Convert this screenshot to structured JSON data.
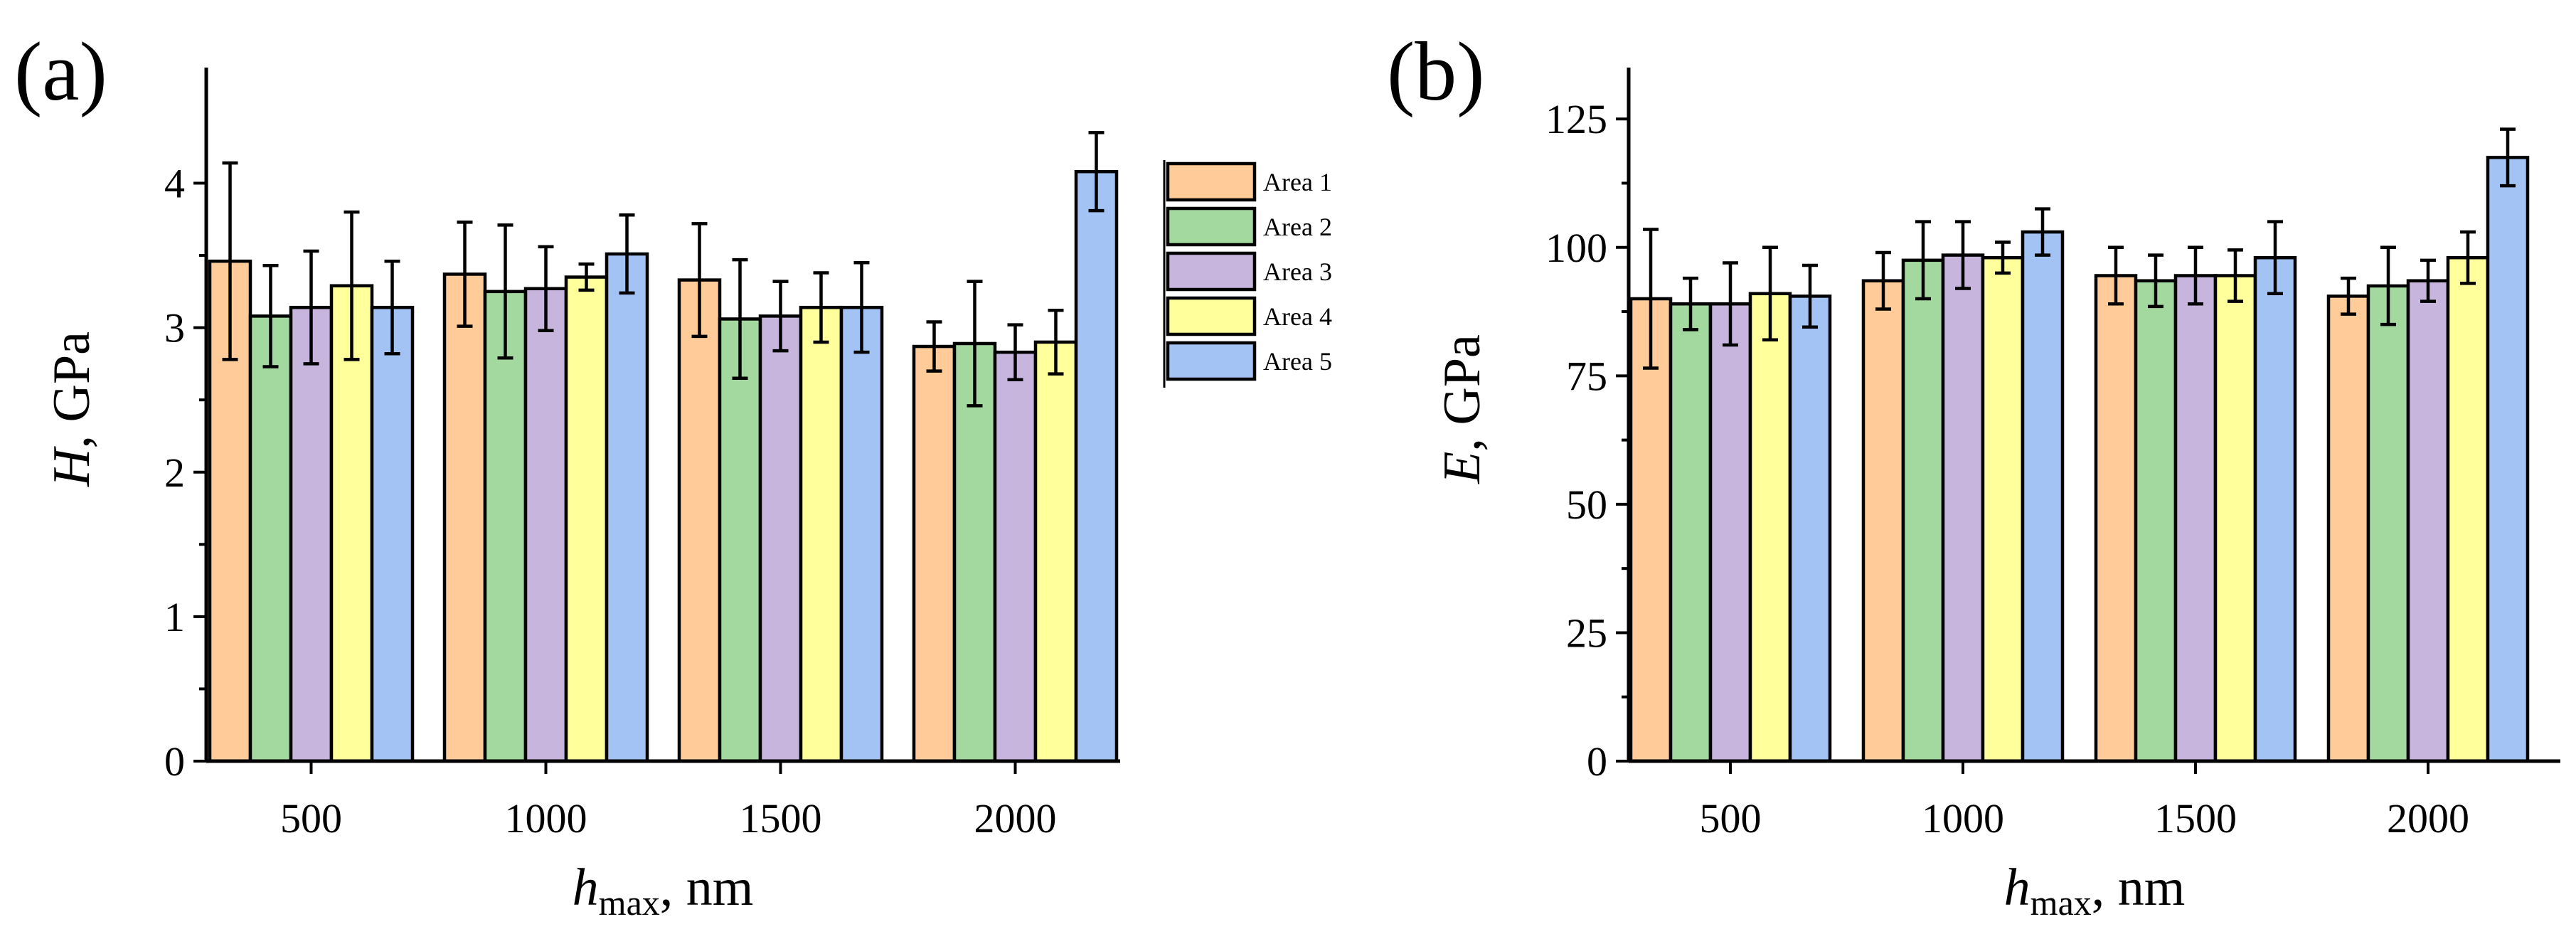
{
  "colors": {
    "Area 1": "#ffcc99",
    "Area 2": "#a3d99e",
    "Area 3": "#c7b5de",
    "Area 4": "#ffff9c",
    "Area 5": "#a3c3f5"
  },
  "legend": {
    "entries": [
      "Area 1",
      "Area 2",
      "Area 3",
      "Area 4",
      "Area 5"
    ]
  },
  "chart_data": [
    {
      "type": "bar",
      "panel_label": "(a)",
      "ylabel": {
        "symbol": "H",
        "unit": ", GPa"
      },
      "xlabel": {
        "symbol": "h",
        "subscript": "max",
        "unit": ", nm"
      },
      "categories": [
        "500",
        "1000",
        "1500",
        "2000"
      ],
      "ylim": [
        0,
        4.8
      ],
      "yticks": [
        0,
        1,
        2,
        3,
        4
      ],
      "ytick_labels": [
        "0",
        "1",
        "2",
        "3",
        "4"
      ],
      "series": [
        {
          "name": "Area 1",
          "values": [
            3.46,
            3.37,
            3.33,
            2.87
          ],
          "errors": [
            0.68,
            0.36,
            0.39,
            0.17
          ]
        },
        {
          "name": "Area 2",
          "values": [
            3.08,
            3.25,
            3.06,
            2.89
          ],
          "errors": [
            0.35,
            0.46,
            0.41,
            0.43
          ]
        },
        {
          "name": "Area 3",
          "values": [
            3.14,
            3.27,
            3.08,
            2.83
          ],
          "errors": [
            0.39,
            0.29,
            0.24,
            0.19
          ]
        },
        {
          "name": "Area 4",
          "values": [
            3.29,
            3.35,
            3.14,
            2.9
          ],
          "errors": [
            0.51,
            0.09,
            0.24,
            0.22
          ]
        },
        {
          "name": "Area 5",
          "values": [
            3.14,
            3.51,
            3.14,
            4.08
          ],
          "errors": [
            0.32,
            0.27,
            0.31,
            0.27
          ]
        }
      ]
    },
    {
      "type": "bar",
      "panel_label": "(b)",
      "ylabel": {
        "symbol": "E",
        "unit": ", GPa"
      },
      "xlabel": {
        "symbol": "h",
        "subscript": "max",
        "unit": ", nm"
      },
      "categories": [
        "500",
        "1000",
        "1500",
        "2000"
      ],
      "ylim": [
        0,
        135
      ],
      "yticks": [
        0,
        25,
        50,
        75,
        100,
        125
      ],
      "ytick_labels": [
        "0",
        "25",
        "50",
        "75",
        "100",
        "125"
      ],
      "series": [
        {
          "name": "Area 1",
          "values": [
            90,
            93.5,
            94.5,
            90.5
          ],
          "errors": [
            13.5,
            5.5,
            5.5,
            3.5
          ]
        },
        {
          "name": "Area 2",
          "values": [
            89,
            97.5,
            93.5,
            92.5
          ],
          "errors": [
            5,
            7.5,
            5,
            7.5
          ]
        },
        {
          "name": "Area 3",
          "values": [
            89,
            98.5,
            94.5,
            93.5
          ],
          "errors": [
            8,
            6.5,
            5.5,
            4
          ]
        },
        {
          "name": "Area 4",
          "values": [
            91,
            98,
            94.5,
            98
          ],
          "errors": [
            9,
            3,
            5,
            5
          ]
        },
        {
          "name": "Area 5",
          "values": [
            90.5,
            103,
            98,
            117.5
          ],
          "errors": [
            6,
            4.5,
            7,
            5.5
          ]
        }
      ]
    }
  ]
}
